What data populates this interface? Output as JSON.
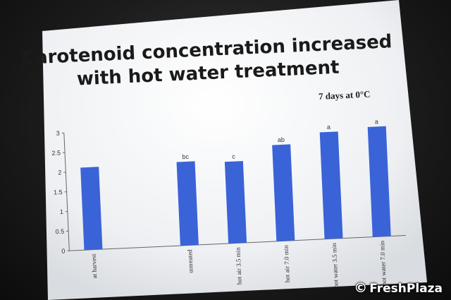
{
  "slide": {
    "title_line1": "Carotenoid concentration increased",
    "title_line2": "with hot water treatment",
    "subtitle": "7 days at 0°C"
  },
  "chart_data": {
    "type": "bar",
    "title": "",
    "ylabel": "",
    "xlabel": "",
    "ylim": [
      0,
      3
    ],
    "yticks": [
      "0",
      "0.5",
      "1",
      "1.5",
      "2",
      "2.5",
      "3"
    ],
    "categories": [
      "at harvest",
      "",
      "untreated",
      "hot air 3.5 min",
      "hot air 7.0 min",
      "hot water 3.5 min",
      "hot water 7.0 min"
    ],
    "values": [
      2.1,
      null,
      2.13,
      2.08,
      2.45,
      2.72,
      2.8
    ],
    "annotations": [
      "",
      "",
      "bc",
      "c",
      "ab",
      "a",
      "a"
    ],
    "bar_color": "#3a63d8",
    "grid": false
  },
  "watermark": {
    "symbol": "©",
    "text": "FreshPlaza"
  }
}
